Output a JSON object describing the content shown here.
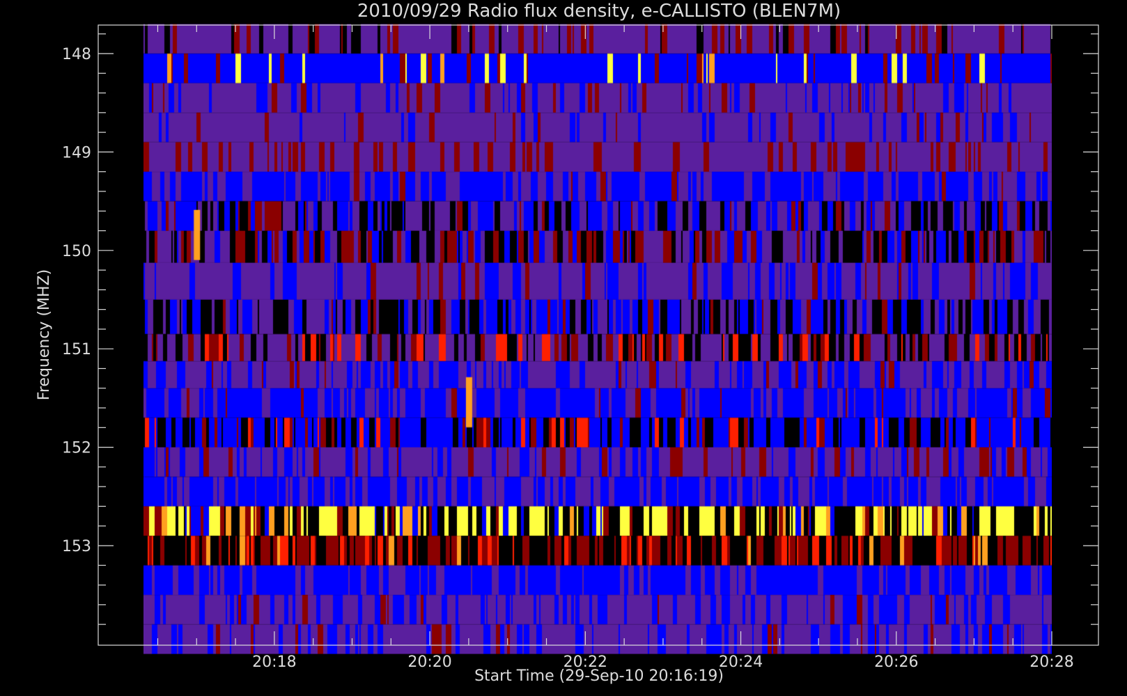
{
  "chart_data": {
    "type": "heatmap",
    "title": "2010/09/29  Radio flux density, e-CALLISTO (BLEN7M)",
    "xlabel": "Start Time (29-Sep-10 20:16:19)",
    "ylabel": "Frequency (MHZ)",
    "x_range_minutes": [
      "20:16:19",
      "20:28:00"
    ],
    "y_range_mhz": [
      147.7,
      154.1
    ],
    "y_reversed": true,
    "x_ticks": [
      "20:18",
      "20:20",
      "20:22",
      "20:24",
      "20:26",
      "20:28"
    ],
    "y_ticks": [
      "148",
      "149",
      "150",
      "151",
      "152",
      "153"
    ],
    "colormap": [
      "#000000",
      "#0000ff",
      "#5a1f9e",
      "#8b0000",
      "#ff2000",
      "#ffa020",
      "#ffff40"
    ],
    "channels_mhz": [
      147.85,
      148.15,
      148.45,
      148.75,
      149.05,
      149.35,
      149.65,
      149.95,
      150.3,
      150.7,
      151.0,
      151.25,
      151.55,
      151.85,
      152.15,
      152.45,
      152.75,
      153.05,
      153.35,
      153.65,
      153.95
    ],
    "channel_profiles": [
      {
        "freq": 147.85,
        "base": 2,
        "bursts": [
          {
            "v": 3,
            "p": 0.18
          },
          {
            "v": 0,
            "p": 0.08
          }
        ]
      },
      {
        "freq": 148.15,
        "base": 1,
        "bursts": [
          {
            "v": 6,
            "p": 0.04
          },
          {
            "v": 3,
            "p": 0.1
          },
          {
            "v": 5,
            "p": 0.03
          }
        ]
      },
      {
        "freq": 148.45,
        "base": 2,
        "bursts": [
          {
            "v": 1,
            "p": 0.2
          },
          {
            "v": 3,
            "p": 0.08
          }
        ]
      },
      {
        "freq": 148.75,
        "base": 2,
        "bursts": [
          {
            "v": 1,
            "p": 0.12
          },
          {
            "v": 3,
            "p": 0.06
          }
        ]
      },
      {
        "freq": 149.05,
        "base": 2,
        "bursts": [
          {
            "v": 3,
            "p": 0.3
          }
        ]
      },
      {
        "freq": 149.35,
        "base": 1,
        "bursts": [
          {
            "v": 2,
            "p": 0.25
          },
          {
            "v": 3,
            "p": 0.05
          }
        ]
      },
      {
        "freq": 149.65,
        "base": 2,
        "bursts": [
          {
            "v": 0,
            "p": 0.3
          },
          {
            "v": 1,
            "p": 0.25
          },
          {
            "v": 3,
            "p": 0.1
          }
        ]
      },
      {
        "freq": 149.95,
        "base": 2,
        "bursts": [
          {
            "v": 0,
            "p": 0.25
          },
          {
            "v": 3,
            "p": 0.25
          },
          {
            "v": 1,
            "p": 0.2
          }
        ]
      },
      {
        "freq": 150.3,
        "base": 2,
        "bursts": [
          {
            "v": 1,
            "p": 0.25
          },
          {
            "v": 3,
            "p": 0.1
          }
        ]
      },
      {
        "freq": 150.7,
        "base": 2,
        "bursts": [
          {
            "v": 0,
            "p": 0.35
          },
          {
            "v": 1,
            "p": 0.3
          },
          {
            "v": 3,
            "p": 0.05
          }
        ]
      },
      {
        "freq": 151.0,
        "base": 2,
        "bursts": [
          {
            "v": 0,
            "p": 0.3
          },
          {
            "v": 4,
            "p": 0.12
          },
          {
            "v": 3,
            "p": 0.15
          }
        ]
      },
      {
        "freq": 151.25,
        "base": 2,
        "bursts": [
          {
            "v": 1,
            "p": 0.35
          },
          {
            "v": 3,
            "p": 0.06
          }
        ]
      },
      {
        "freq": 151.55,
        "base": 1,
        "bursts": [
          {
            "v": 2,
            "p": 0.3
          },
          {
            "v": 3,
            "p": 0.04
          }
        ]
      },
      {
        "freq": 151.85,
        "base": 1,
        "bursts": [
          {
            "v": 0,
            "p": 0.3
          },
          {
            "v": 4,
            "p": 0.08
          },
          {
            "v": 3,
            "p": 0.1
          }
        ]
      },
      {
        "freq": 152.15,
        "base": 2,
        "bursts": [
          {
            "v": 1,
            "p": 0.25
          },
          {
            "v": 3,
            "p": 0.12
          }
        ]
      },
      {
        "freq": 152.45,
        "base": 1,
        "bursts": [
          {
            "v": 2,
            "p": 0.3
          }
        ]
      },
      {
        "freq": 152.75,
        "base": 0,
        "bursts": [
          {
            "v": 6,
            "p": 0.35
          },
          {
            "v": 1,
            "p": 0.1
          },
          {
            "v": 3,
            "p": 0.1
          },
          {
            "v": 5,
            "p": 0.05
          }
        ]
      },
      {
        "freq": 153.05,
        "base": 0,
        "bursts": [
          {
            "v": 3,
            "p": 0.35
          },
          {
            "v": 4,
            "p": 0.15
          },
          {
            "v": 5,
            "p": 0.06
          }
        ]
      },
      {
        "freq": 153.35,
        "base": 1,
        "bursts": [
          {
            "v": 2,
            "p": 0.25
          }
        ]
      },
      {
        "freq": 153.65,
        "base": 2,
        "bursts": [
          {
            "v": 1,
            "p": 0.3
          },
          {
            "v": 3,
            "p": 0.04
          }
        ]
      },
      {
        "freq": 153.95,
        "base": 2,
        "bursts": [
          {
            "v": 1,
            "p": 0.25
          },
          {
            "v": 3,
            "p": 0.05
          }
        ]
      }
    ],
    "notable_events": [
      {
        "time": "20:17:00",
        "freq_mhz": 149.8,
        "level": 5
      },
      {
        "time": "20:20:30",
        "freq_mhz": 151.5,
        "level": 5
      }
    ],
    "grid": false,
    "legend": "none"
  }
}
